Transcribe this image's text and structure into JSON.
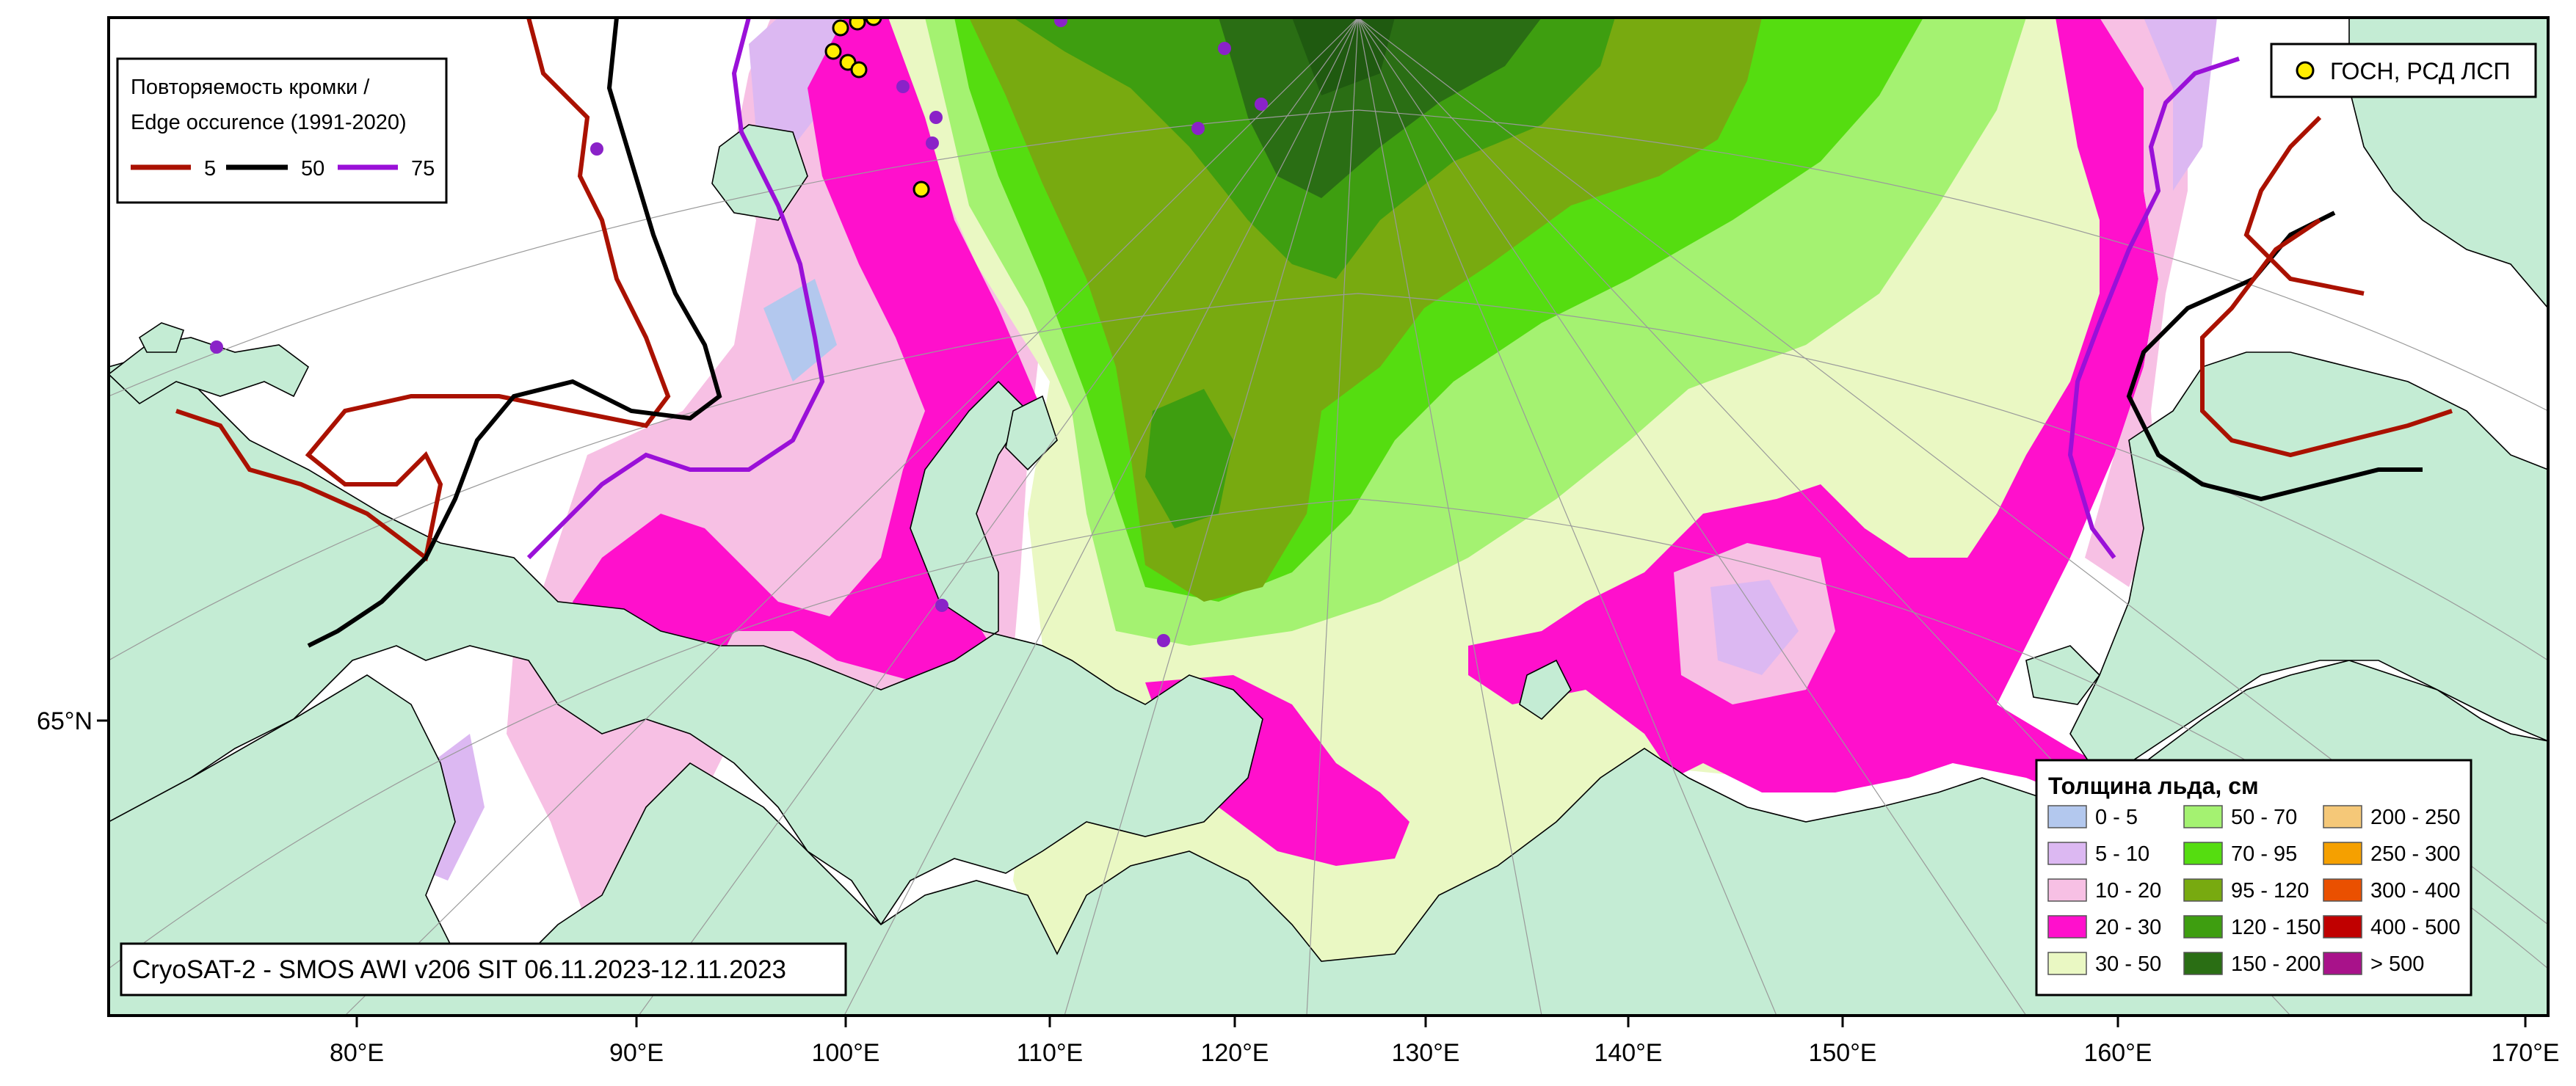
{
  "edge_legend": {
    "title_line1": "Повторяемость кромки /",
    "title_line2": "Edge occurence (1991-2020)",
    "items": [
      {
        "label": "5",
        "color": "#aa1100"
      },
      {
        "label": "50",
        "color": "#000000"
      },
      {
        "label": "75",
        "color": "#9a10d8"
      }
    ]
  },
  "station_legend": {
    "label": "ГОСН, РСД ЛСП",
    "color": "#ffee00"
  },
  "dataset_caption": "CryoSAT-2 - SMOS AWI v206 SIT 06.11.2023-12.11.2023",
  "thickness_legend": {
    "title": "Толщина льда, см",
    "classes": [
      {
        "label": "0 - 5",
        "color": "#b3c8ee"
      },
      {
        "label": "5 - 10",
        "color": "#dcb8f2"
      },
      {
        "label": "10 - 20",
        "color": "#f7c0e4"
      },
      {
        "label": "20 - 30",
        "color": "#ff10cc"
      },
      {
        "label": "30 - 50",
        "color": "#eaf8c3"
      },
      {
        "label": "50 - 70",
        "color": "#a4f271"
      },
      {
        "label": "70 - 95",
        "color": "#55dd10"
      },
      {
        "label": "95 - 120",
        "color": "#78aa10"
      },
      {
        "label": "120 - 150",
        "color": "#3e9e10"
      },
      {
        "label": "150 - 200",
        "color": "#2a6e14"
      },
      {
        "label": "200 - 250",
        "color": "#f5c878"
      },
      {
        "label": "250 - 300",
        "color": "#f5a000"
      },
      {
        "label": "300 - 400",
        "color": "#ea5000"
      },
      {
        "label": "400 - 500",
        "color": "#c00000"
      },
      {
        "label": "> 500",
        "color": "#a8128a"
      }
    ]
  },
  "axes": {
    "lon_ticks": [
      "80°E",
      "90°E",
      "100°E",
      "110°E",
      "120°E",
      "130°E",
      "140°E",
      "150°E",
      "160°E",
      "170°E"
    ],
    "lat_ticks": [
      "65°N"
    ]
  },
  "colors": {
    "land": "#c4ecd4",
    "open_water": "#ffffff",
    "coastline": "#000000",
    "yellow_station": "#ffee00",
    "purple_station": "#8a22c8"
  }
}
